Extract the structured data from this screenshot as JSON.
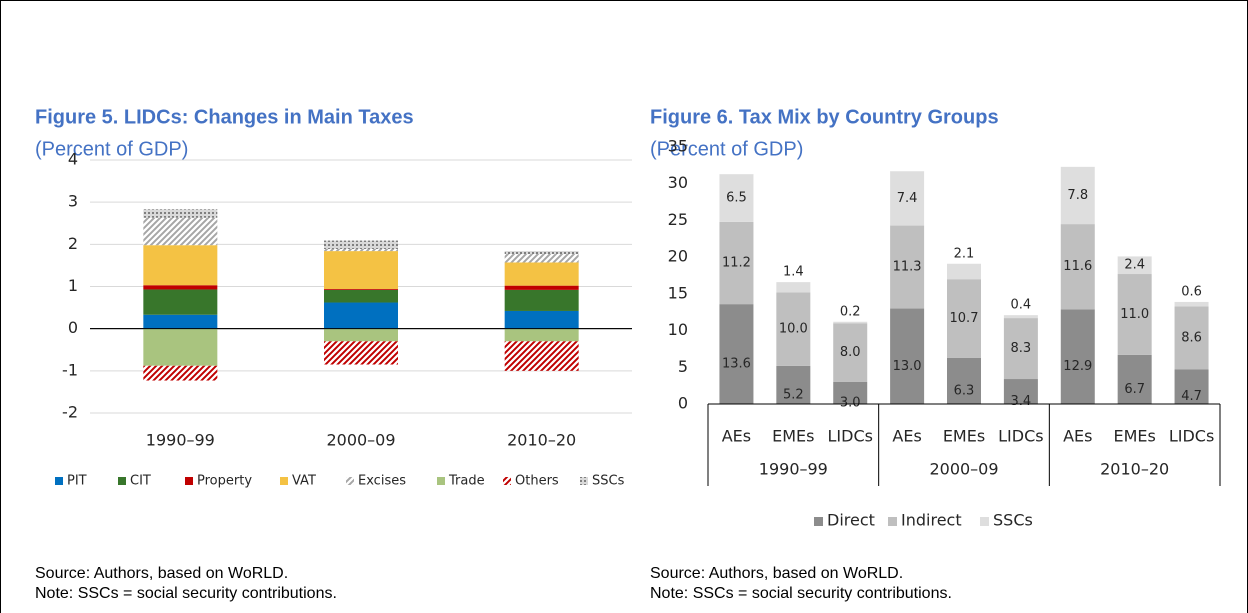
{
  "chart_data": [
    {
      "type": "stacked-bar",
      "title": "Figure 5. LIDCs: Changes in Main Taxes",
      "subtitle": "(Percent of GDP)",
      "categories": [
        "1990–99",
        "2000–09",
        "2010–20"
      ],
      "series": [
        {
          "name": "PIT",
          "color": "#0070c0",
          "values": [
            0.33,
            0.62,
            0.42
          ]
        },
        {
          "name": "CIT",
          "color": "#38762b",
          "values": [
            0.6,
            0.3,
            0.5
          ]
        },
        {
          "name": "Property",
          "color": "#c00000",
          "values": [
            0.1,
            0.02,
            0.1
          ]
        },
        {
          "name": "VAT",
          "color": "#f4c244",
          "values": [
            0.95,
            0.9,
            0.55
          ]
        },
        {
          "name": "Excises",
          "color": "#a6a6a6",
          "pattern": "hatch",
          "values": [
            0.65,
            0.05,
            0.2
          ]
        },
        {
          "name": "Trade",
          "color": "#a9c47f",
          "values": [
            -0.88,
            -0.3,
            -0.3
          ]
        },
        {
          "name": "Others",
          "color": "#c00000",
          "pattern": "hatch",
          "values": [
            -0.35,
            -0.55,
            -0.7
          ]
        },
        {
          "name": "SSCs",
          "color": "#7f7f7f",
          "pattern": "dots",
          "values": [
            0.2,
            0.2,
            0.07
          ]
        }
      ],
      "ylim": [
        -2,
        4
      ],
      "yticks": [
        -2,
        -1,
        0,
        1,
        2,
        3,
        4
      ],
      "grid": true,
      "legend": "bottom",
      "source": "Source: Authors, based on WoRLD.",
      "note": "Note: SSCs = social security contributions."
    },
    {
      "type": "stacked-bar-grouped",
      "title": "Figure 6. Tax Mix by Country Groups",
      "subtitle": "(Percent of GDP)",
      "groups": [
        "1990–99",
        "2000–09",
        "2010–20"
      ],
      "categories": [
        "AEs",
        "EMEs",
        "LIDCs",
        "AEs",
        "EMEs",
        "LIDCs",
        "AEs",
        "EMEs",
        "LIDCs"
      ],
      "series": [
        {
          "name": "Direct",
          "color": "#8c8c8c",
          "values": [
            13.6,
            5.2,
            3.0,
            13.0,
            6.3,
            3.4,
            12.9,
            6.7,
            4.7
          ],
          "value_labels": [
            "13.6",
            "5.2",
            "3.0",
            "13.0",
            "6.3",
            "3.4",
            "12.9",
            "6.7",
            "4.7"
          ]
        },
        {
          "name": "Indirect",
          "color": "#bfbfbf",
          "values": [
            11.2,
            10.0,
            8.0,
            11.3,
            10.7,
            8.3,
            11.6,
            11.0,
            8.6
          ],
          "value_labels": [
            "11.2",
            "10.0",
            "8.0",
            "11.3",
            "10.7",
            "8.3",
            "11.6",
            "11.0",
            "8.6"
          ]
        },
        {
          "name": "SSCs",
          "color": "#dedede",
          "values": [
            6.5,
            1.4,
            0.2,
            7.4,
            2.1,
            0.4,
            7.8,
            2.4,
            0.6
          ],
          "value_labels": [
            "6.5",
            "1.4",
            "0.2",
            "7.4",
            "2.1",
            "0.4",
            "7.8",
            "2.4",
            "0.6"
          ]
        }
      ],
      "ylim": [
        0,
        35
      ],
      "yticks": [
        0,
        5,
        10,
        15,
        20,
        25,
        30,
        35
      ],
      "grid": false,
      "legend": "bottom",
      "source": "Source: Authors, based on WoRLD.",
      "note": "Note: SSCs = social security contributions."
    }
  ]
}
